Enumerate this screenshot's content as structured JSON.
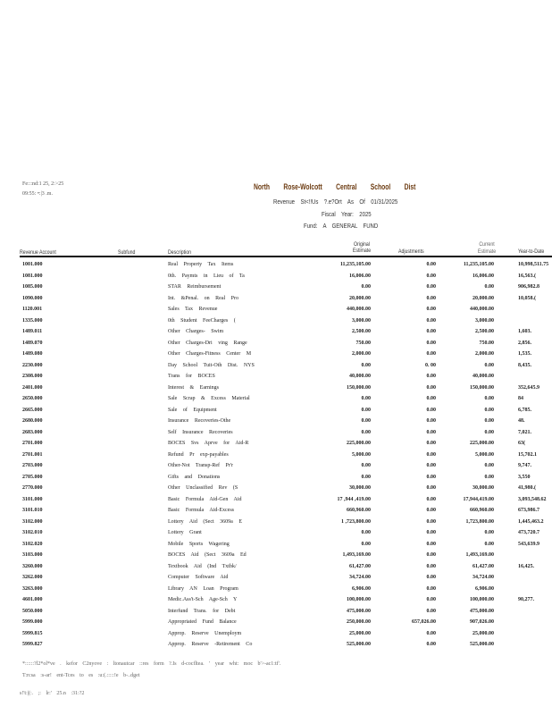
{
  "header": {
    "date": "Fe:::nd:1 25, 2:>25",
    "time": "09:55: •:|3 .m.",
    "title": "North Rose-Wolcott Central School Dist",
    "report": "Revenue St<!!Us ?.e?Ort As Of 01/31/2025",
    "fiscal_year": "Fiscal Year: 2025",
    "fund": "Fund: A GENERAL FUND"
  },
  "columns": {
    "account": "Revenue Account",
    "subfund": "Subfund",
    "description": "Description",
    "original": "Original Estimate",
    "adjustments": "Adjustments",
    "current": "Current Estimate",
    "ytd": "Year-to-Date"
  },
  "rows": [
    [
      "1001.000",
      "Real Property Tax Items",
      "11,235,105.00",
      "0.00",
      "11,235,105.00",
      "10,998,511.75"
    ],
    [
      "1081.000",
      "0th. Paymts in Lieu of Ta",
      "16,006.00",
      "0.00",
      "16,006.00",
      "16,563.("
    ],
    [
      "1085.000",
      "STAR Reimbursement",
      "0.00",
      "0.00",
      "0.00",
      "906,982.8"
    ],
    [
      "1090.000",
      "Int. &Penal. on Real Pro",
      "20,000.00",
      "0.00",
      "20,000.00",
      "10,058.("
    ],
    [
      "1120.001",
      "Sales Tax Revenue",
      "440,000.00",
      "0.00",
      "440,000.00",
      ""
    ],
    [
      "1335.000",
      "0th Student FeeCharges (",
      "3,000.00",
      "0.00",
      "3,000.00",
      ""
    ],
    [
      "1489.011",
      "Other Charges- Swim",
      "2,500.00",
      "0.00",
      "2,500.00",
      "1,603."
    ],
    [
      "1489.070",
      "Other Charges-Dri ving Range",
      "750.00",
      "0.00",
      "750.00",
      "2,856."
    ],
    [
      "1489.080",
      "Other Charges-Fitness Center M",
      "2,000.00",
      "0.00",
      "2,000.00",
      "1,535."
    ],
    [
      "2230.000",
      "Day School Tuit-Oth Dist. NYS",
      "0.00",
      "0. 00",
      "0.00",
      "8,435."
    ],
    [
      "2308.000",
      "Trans for BOCES",
      "40,000.00",
      "0.00",
      "40,000.00",
      ""
    ],
    [
      "2401.000",
      "Interest & Earnings",
      "150,000.00",
      "0.00",
      "150,000.00",
      "352,645.9"
    ],
    [
      "2650.000",
      "Sale Scrap & Excess Material",
      "0.00",
      "0.00",
      "0.00",
      "84"
    ],
    [
      "2665.000",
      "Sale of Equipment",
      "0.00",
      "0.00",
      "0.00",
      "6,785."
    ],
    [
      "2680.000",
      "Insurance Recoveries-Othe",
      "0.00",
      "0.00",
      "0.00",
      "48."
    ],
    [
      "2683.000",
      "Self Insurance Recoveries",
      "0.00",
      "0.00",
      "0.00",
      "7,021."
    ],
    [
      "2701.000",
      "BOCES Svs Aprve for Aid-R",
      "225,000.00",
      "0.00",
      "225,000.00",
      "63("
    ],
    [
      "2701.001",
      "Refund Pr exp-payables",
      "5,000.00",
      "0.00",
      "5,000.00",
      "15,702.1"
    ],
    [
      "2703.000",
      "Other-Not Transp-Ref Pr'r",
      "0.00",
      "0.00",
      "0.00",
      "9,747."
    ],
    [
      "2705.000",
      "Gifts and Donations",
      "0.00",
      "0.00",
      "0.00",
      "3,550"
    ],
    [
      "2770.000",
      "Other Unclassified Rev (S",
      "30,000.00",
      "0.00",
      "30,000.00",
      "41,980.("
    ],
    [
      "3101.000",
      "Basic Formula Aid-Gen Aid",
      "17 ,944 ,419.00",
      "0.00",
      "17,944,419.00",
      "3,093,548.62"
    ],
    [
      "3101.010",
      "Basic Formula Aid-Excess",
      "660,960.00",
      "0.00",
      "660,960.00",
      "673,986.7"
    ],
    [
      "3102.000",
      "Lottery Aid (Sect 3609a E",
      "1 ,723,800.00",
      "0.00",
      "1,723,800.00",
      "1,445,463.2"
    ],
    [
      "3102.010",
      "Lottery Grant",
      "0.00",
      "0.00",
      "0.00",
      "473,720.7"
    ],
    [
      "3102.020",
      "Mobile Sports Wagering",
      "0.00",
      "0.00",
      "0.00",
      "543,639.9"
    ],
    [
      "3103.000",
      "BOCES Aid (Sect 3609a Ed",
      "1,493,169.00",
      "0.00",
      "1,493,169.00",
      ""
    ],
    [
      "3260.000",
      "Textbook Aid (Ind Txtbk/",
      "61,427.00",
      "0.00",
      "61,427.00",
      "16,425."
    ],
    [
      "3262.000",
      "Computer Software Aid",
      "34,724.00",
      "0.00",
      "34,724.00",
      ""
    ],
    [
      "3263.000",
      "Library AN Loan Program",
      "6,906.00",
      "0.00",
      "6,906.00",
      ""
    ],
    [
      "4601.000",
      "Medic.Ass't-Sch Age-Sch Y",
      "100,000.00",
      "0.00",
      "100,000.00",
      "90,277."
    ],
    [
      "5050.000",
      "Interfund Trans. for Debt",
      "475,000.00",
      "0.00",
      "475,000.00",
      ""
    ],
    [
      "5999.000",
      "Appropriated Fund Balance",
      "250,000.00",
      "657,026.00",
      "907,026.00",
      ""
    ],
    [
      "5999.815",
      "Approp. Reserve Unemploym",
      "25,000.00",
      "0.00",
      "25,000.00",
      ""
    ],
    [
      "5999.827",
      "Approp. Reserve -Retirement Co",
      "525,000.00",
      "0.00",
      "525,000.00",
      ""
    ]
  ],
  "footer": {
    "note1": "*::::::?l2*ol*ve . kefor C2nyove : ltonautcar ::res form ?.Is d-cocfltea. ' year wht: moc b'>-ac1:tf'.",
    "note2": "T:rcsa :s-ar! ent-Tces to es :u:(.:::::!e b-..dget",
    "page": "s!'t:|(:. ;: lr:' 25.n :31:?2"
  }
}
